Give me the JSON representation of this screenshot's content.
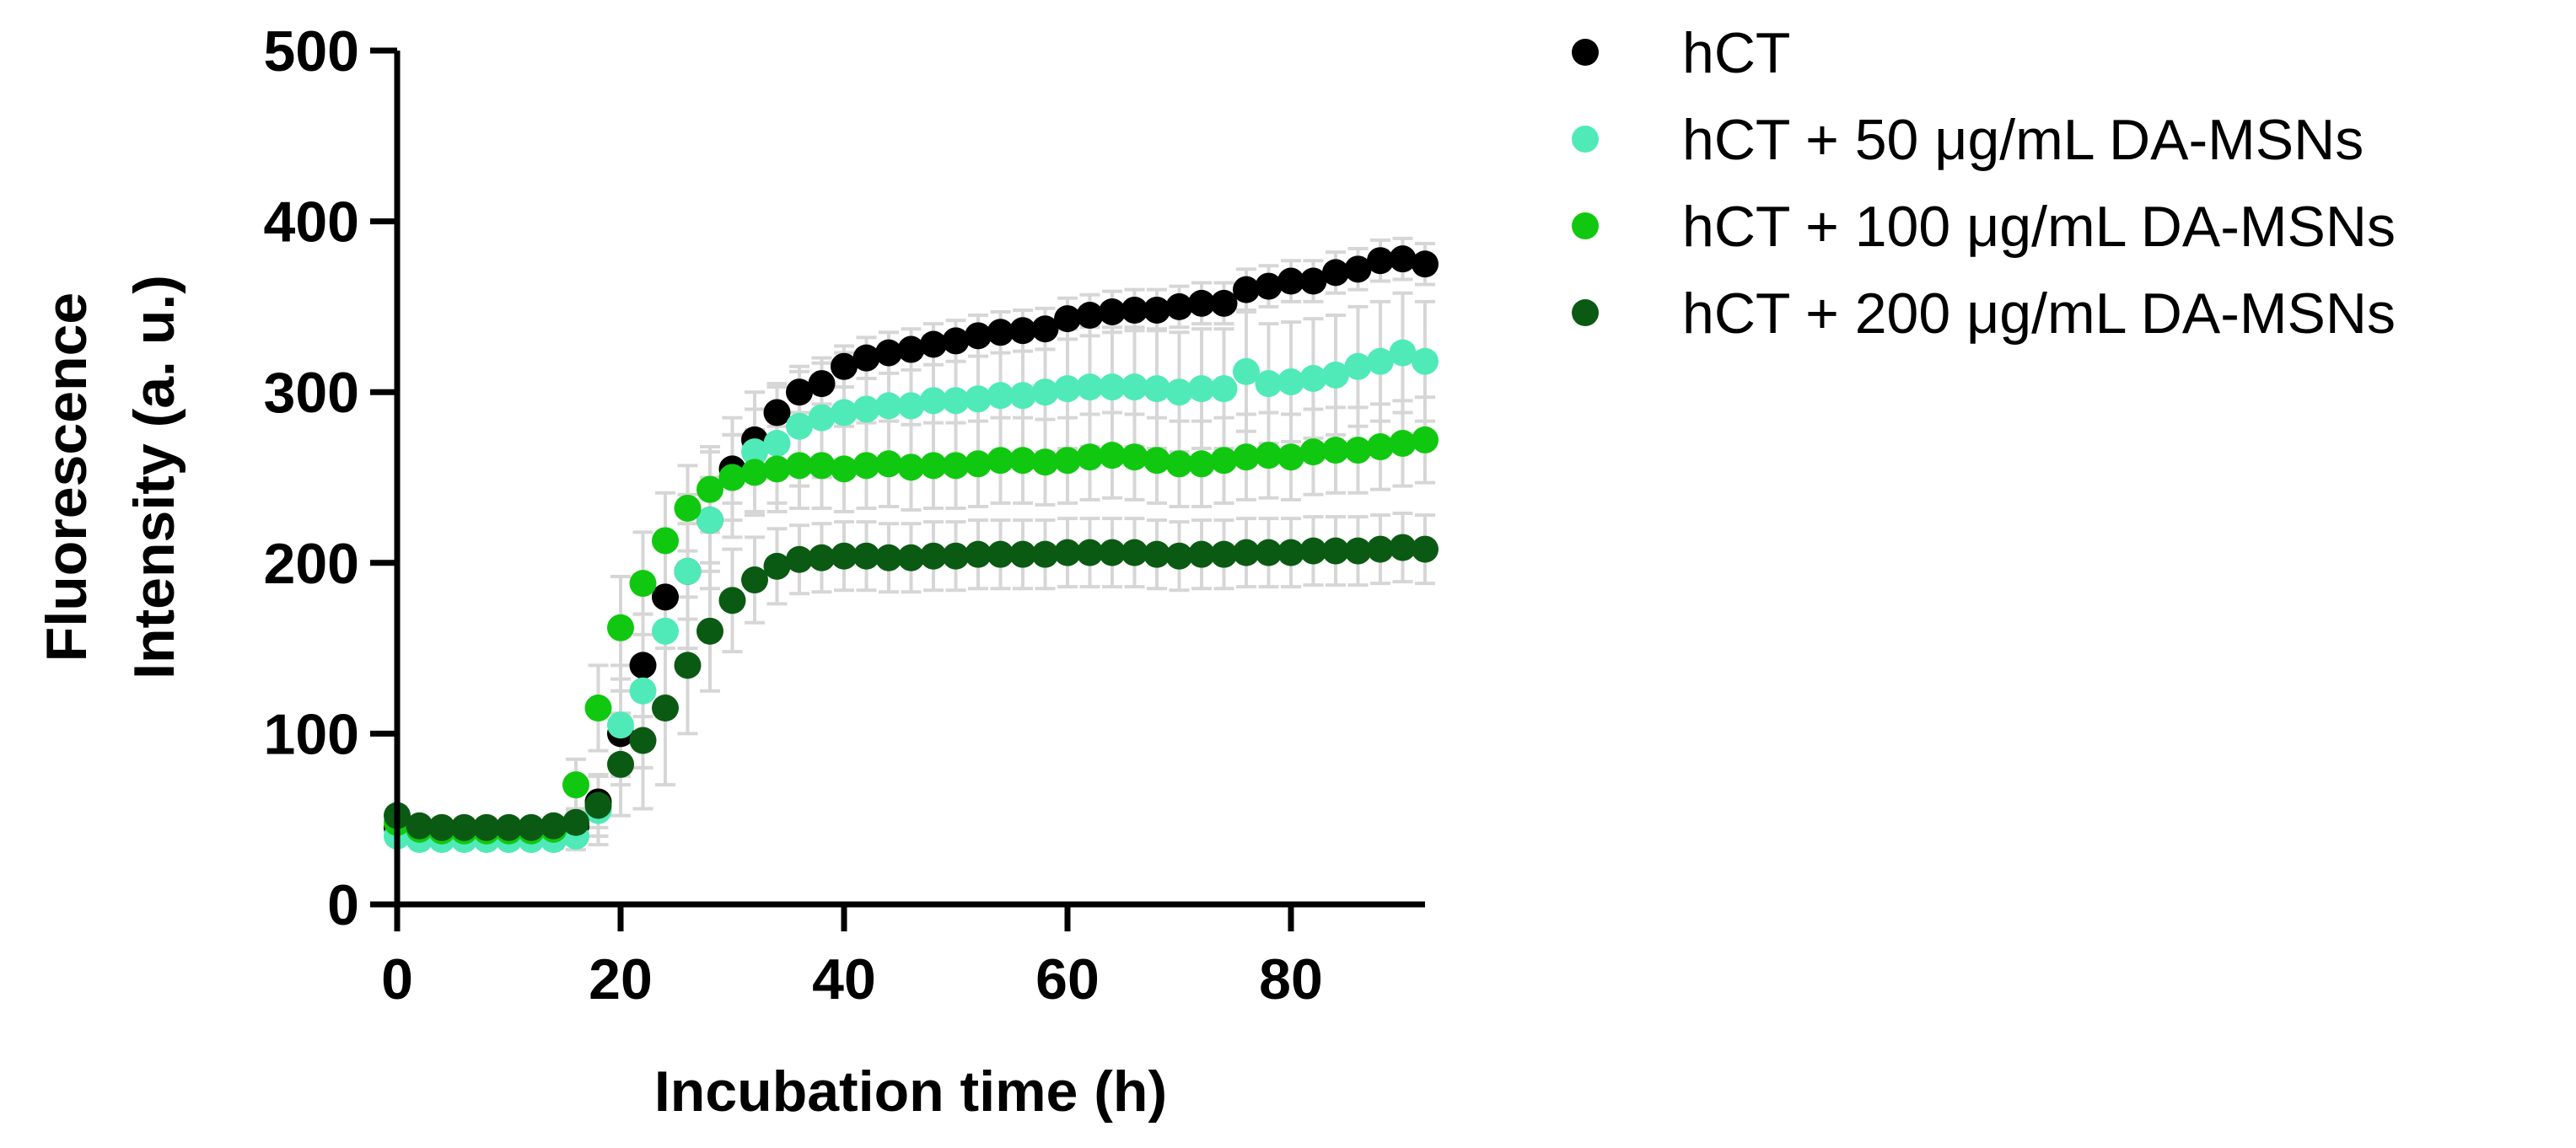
{
  "chart_data": {
    "type": "scatter",
    "title": "",
    "xlabel": "Incubation time (h)",
    "ylabel_lines": [
      "Fluorescence",
      "Intensity (a. u.)"
    ],
    "xlim": [
      0,
      92
    ],
    "ylim": [
      0,
      500
    ],
    "xticks": [
      0,
      20,
      40,
      60,
      80
    ],
    "yticks": [
      0,
      100,
      200,
      300,
      400,
      500
    ],
    "xtick_labels": [
      "0",
      "20",
      "40",
      "60",
      "80"
    ],
    "ytick_labels": [
      "0",
      "100",
      "200",
      "300",
      "400",
      "500"
    ],
    "grid": false,
    "legend_position": "top-right outside",
    "error_bar_color": "#d6d6d6",
    "x": [
      0,
      2,
      4,
      6,
      8,
      10,
      12,
      14,
      16,
      18,
      20,
      22,
      24,
      26,
      28,
      30,
      32,
      34,
      36,
      38,
      40,
      42,
      44,
      46,
      48,
      50,
      52,
      54,
      56,
      58,
      60,
      62,
      64,
      66,
      68,
      70,
      72,
      74,
      76,
      78,
      80,
      82,
      84,
      86,
      88,
      90,
      92
    ],
    "series": [
      {
        "name": "hCT",
        "color": "#000000",
        "values": [
          45,
          44,
          43,
          43,
          43,
          43,
          43,
          44,
          46,
          60,
          100,
          140,
          180,
          195,
          225,
          255,
          272,
          288,
          300,
          305,
          315,
          320,
          323,
          325,
          328,
          330,
          333,
          335,
          336,
          337,
          343,
          345,
          347,
          348,
          348,
          350,
          352,
          352,
          360,
          362,
          365,
          365,
          370,
          372,
          377,
          378,
          375
        ],
        "errors": [
          5,
          5,
          5,
          5,
          5,
          5,
          5,
          6,
          8,
          15,
          25,
          30,
          30,
          28,
          25,
          20,
          18,
          15,
          12,
          12,
          12,
          12,
          12,
          12,
          12,
          12,
          12,
          12,
          12,
          12,
          12,
          12,
          12,
          12,
          12,
          12,
          12,
          12,
          12,
          12,
          12,
          12,
          12,
          12,
          12,
          12,
          12
        ]
      },
      {
        "name": "hCT + 50 μg/mL DA-MSNs",
        "color": "#4feab8",
        "values": [
          40,
          38,
          38,
          38,
          38,
          38,
          38,
          38,
          40,
          55,
          105,
          125,
          160,
          195,
          225,
          250,
          265,
          270,
          280,
          285,
          288,
          290,
          292,
          292,
          295,
          295,
          296,
          298,
          298,
          300,
          302,
          303,
          303,
          303,
          302,
          300,
          302,
          302,
          312,
          305,
          306,
          308,
          310,
          315,
          318,
          323,
          318
        ],
        "errors": [
          4,
          4,
          4,
          4,
          4,
          4,
          4,
          5,
          8,
          20,
          35,
          45,
          50,
          45,
          40,
          35,
          35,
          35,
          35,
          35,
          35,
          35,
          35,
          35,
          35,
          35,
          35,
          35,
          35,
          35,
          35,
          35,
          35,
          35,
          35,
          35,
          35,
          35,
          35,
          35,
          35,
          35,
          35,
          35,
          35,
          35,
          35
        ]
      },
      {
        "name": "hCT + 100 μg/mL DA-MSNs",
        "color": "#10c810",
        "values": [
          48,
          44,
          43,
          43,
          43,
          43,
          43,
          44,
          70,
          115,
          162,
          188,
          213,
          232,
          243,
          250,
          253,
          255,
          257,
          257,
          255,
          257,
          258,
          256,
          257,
          257,
          258,
          260,
          260,
          259,
          260,
          262,
          263,
          262,
          260,
          258,
          258,
          260,
          262,
          263,
          262,
          265,
          266,
          266,
          268,
          270,
          272
        ],
        "errors": [
          5,
          5,
          5,
          5,
          5,
          5,
          5,
          6,
          15,
          25,
          30,
          30,
          28,
          25,
          25,
          25,
          25,
          25,
          25,
          25,
          25,
          25,
          25,
          25,
          25,
          25,
          25,
          25,
          25,
          25,
          25,
          25,
          25,
          25,
          25,
          25,
          25,
          25,
          25,
          25,
          25,
          25,
          25,
          25,
          25,
          25,
          25
        ]
      },
      {
        "name": "hCT + 200 μg/mL DA-MSNs",
        "color": "#0b5a13",
        "values": [
          52,
          46,
          45,
          45,
          45,
          45,
          45,
          46,
          48,
          58,
          82,
          96,
          115,
          140,
          160,
          178,
          190,
          198,
          202,
          203,
          204,
          204,
          203,
          203,
          204,
          204,
          205,
          205,
          205,
          205,
          206,
          206,
          206,
          206,
          205,
          204,
          205,
          205,
          206,
          206,
          206,
          207,
          207,
          207,
          208,
          209,
          208
        ],
        "errors": [
          5,
          5,
          5,
          5,
          5,
          5,
          5,
          5,
          8,
          18,
          30,
          40,
          45,
          40,
          35,
          30,
          25,
          22,
          20,
          20,
          20,
          20,
          20,
          20,
          20,
          20,
          20,
          20,
          20,
          20,
          20,
          20,
          20,
          20,
          20,
          20,
          20,
          20,
          20,
          20,
          20,
          20,
          20,
          20,
          20,
          20,
          20
        ]
      }
    ]
  }
}
